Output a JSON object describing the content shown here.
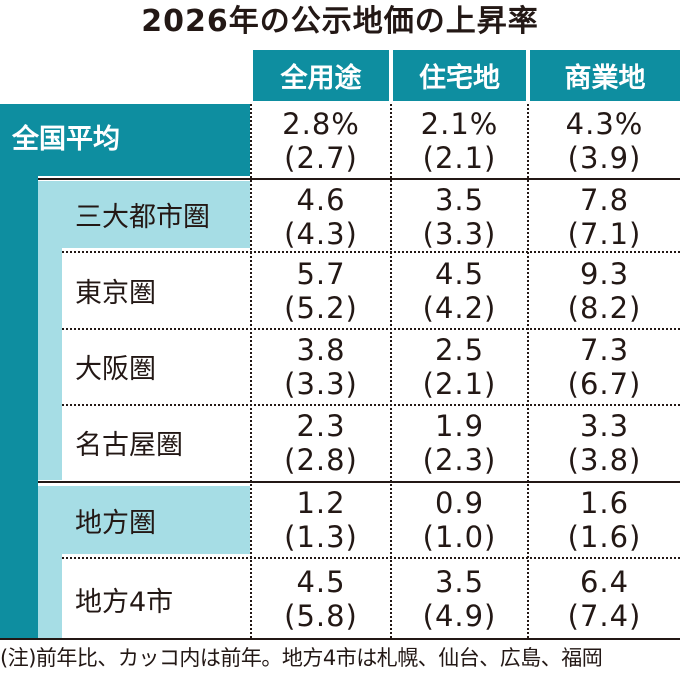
{
  "chart_data": {
    "type": "table",
    "title": "2026年の公示地価の上昇率",
    "columns": [
      "全用途",
      "住宅地",
      "商業地"
    ],
    "rows": [
      {
        "label": "全国平均",
        "values": [
          "2.8%",
          "2.1%",
          "4.3%"
        ],
        "prev": [
          "(2.7)",
          "(2.1)",
          "(3.9)"
        ]
      },
      {
        "label": "三大都市圏",
        "values": [
          "4.6",
          "3.5",
          "7.8"
        ],
        "prev": [
          "(4.3)",
          "(3.3)",
          "(7.1)"
        ]
      },
      {
        "label": "東京圏",
        "values": [
          "5.7",
          "4.5",
          "9.3"
        ],
        "prev": [
          "(5.2)",
          "(4.2)",
          "(8.2)"
        ]
      },
      {
        "label": "大阪圏",
        "values": [
          "3.8",
          "2.5",
          "7.3"
        ],
        "prev": [
          "(3.3)",
          "(2.1)",
          "(6.7)"
        ]
      },
      {
        "label": "名古屋圏",
        "values": [
          "2.3",
          "1.9",
          "3.3"
        ],
        "prev": [
          "(2.8)",
          "(2.3)",
          "(3.8)"
        ]
      },
      {
        "label": "地方圏",
        "values": [
          "1.2",
          "0.9",
          "1.6"
        ],
        "prev": [
          "(1.3)",
          "(1.0)",
          "(1.6)"
        ]
      },
      {
        "label": "地方4市",
        "values": [
          "4.5",
          "3.5",
          "6.4"
        ],
        "prev": [
          "(5.8)",
          "(4.9)",
          "(7.4)"
        ]
      }
    ],
    "note": "(注)前年比、カッコ内は前年。地方4市は札幌、仙台、広島、福岡"
  },
  "colors": {
    "header_teal": "#0e8ea0",
    "group_cyan": "#a6dde5",
    "text": "#231815"
  }
}
